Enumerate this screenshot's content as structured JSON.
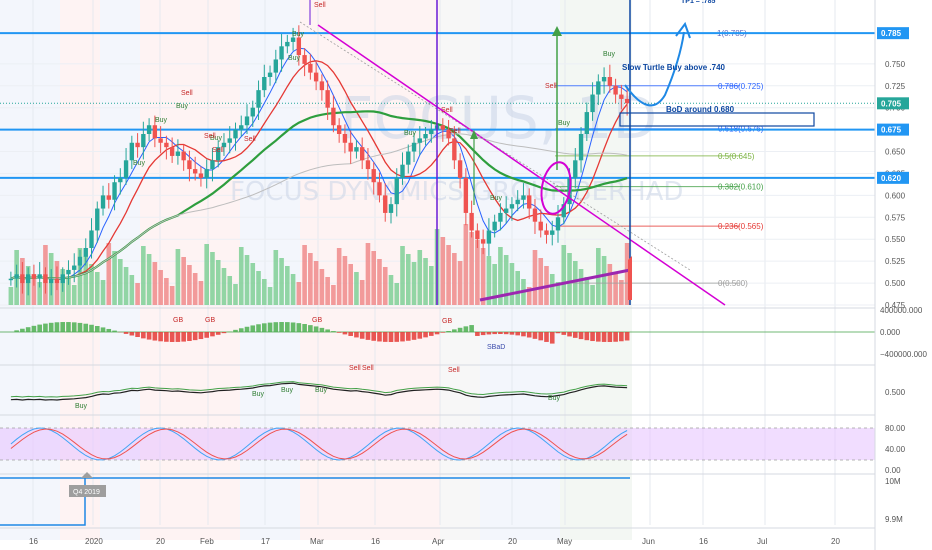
{
  "chart_data": {
    "type": "candlestick",
    "timeframe": "1D",
    "watermark": {
      "ticker": "FOCUS",
      "interval": "1D",
      "company": "FOCUS DYNAMICS GROUP BERHAD"
    },
    "colors": {
      "up": "#26a69a",
      "down": "#ef5350",
      "price_line": "#2196f3",
      "fib": "#2962ff",
      "ma_green": "#2e9e3e",
      "ma_red": "#e53935",
      "trendline": "#d400d4",
      "rsi_band": "#e8c6ff",
      "purple": "#9c27b0",
      "annotation": "#0d47a1"
    },
    "price_axis": {
      "min": 0.475,
      "max": 0.8,
      "ticks": [
        "0.475",
        "0.500",
        "0.525",
        "0.550",
        "0.575",
        "0.600",
        "0.625",
        "0.650",
        "0.675",
        "0.700",
        "0.725",
        "0.750"
      ]
    },
    "highlight_labels": [
      "0.785",
      "0.705",
      "0.675",
      "0.620"
    ],
    "horizontal_levels": [
      0.785,
      0.675,
      0.62
    ],
    "fib_levels": [
      {
        "label": "1(0.785)",
        "value": 0.785,
        "color": "#5c6bc0"
      },
      {
        "label": "0.786(0.725)",
        "value": 0.725,
        "color": "#2962ff"
      },
      {
        "label": "0.618(0.676)",
        "value": 0.676,
        "color": "#2962ff"
      },
      {
        "label": "0.5(0.645)",
        "value": 0.645,
        "color": "#7cb342"
      },
      {
        "label": "0.382(0.610)",
        "value": 0.61,
        "color": "#43a047"
      },
      {
        "label": "0.236(0.565)",
        "value": 0.565,
        "color": "#e53935"
      },
      {
        "label": "0(0.500)",
        "value": 0.5,
        "color": "#9e9e9e"
      }
    ],
    "annotations": {
      "tp": "TP1 = .785",
      "slow_turtle": "Slow Turtle Buy above .740",
      "bod": "BoD around 0.680",
      "q4": "Q4 2019"
    },
    "x_axis_labels": [
      "16",
      "2020",
      "20",
      "Feb",
      "17",
      "Mar",
      "16",
      "Apr",
      "20",
      "May",
      "Jun",
      "16",
      "Jul",
      "20"
    ],
    "series_closes": [
      0.505,
      0.51,
      0.5,
      0.51,
      0.505,
      0.51,
      0.5,
      0.505,
      0.5,
      0.51,
      0.515,
      0.52,
      0.53,
      0.54,
      0.56,
      0.585,
      0.6,
      0.595,
      0.615,
      0.62,
      0.64,
      0.66,
      0.655,
      0.67,
      0.68,
      0.665,
      0.66,
      0.655,
      0.645,
      0.65,
      0.64,
      0.63,
      0.625,
      0.62,
      0.63,
      0.64,
      0.655,
      0.66,
      0.665,
      0.675,
      0.68,
      0.69,
      0.7,
      0.72,
      0.735,
      0.74,
      0.755,
      0.77,
      0.775,
      0.78,
      0.76,
      0.75,
      0.74,
      0.73,
      0.72,
      0.7,
      0.68,
      0.67,
      0.66,
      0.65,
      0.655,
      0.64,
      0.63,
      0.615,
      0.6,
      0.58,
      0.59,
      0.62,
      0.635,
      0.65,
      0.66,
      0.665,
      0.67,
      0.675,
      0.68,
      0.675,
      0.665,
      0.64,
      0.62,
      0.58,
      0.56,
      0.55,
      0.545,
      0.56,
      0.57,
      0.58,
      0.585,
      0.59,
      0.595,
      0.6,
      0.585,
      0.57,
      0.56,
      0.555,
      0.56,
      0.575,
      0.59,
      0.62,
      0.64,
      0.67,
      0.695,
      0.715,
      0.73,
      0.735,
      0.725,
      0.715,
      0.71,
      0.705
    ],
    "macd": {
      "ticks": [
        "400000.000",
        "0.000",
        "−400000.000"
      ]
    },
    "indicator3": {
      "ticks": [
        "0.500"
      ]
    },
    "rsi": {
      "ticks": [
        "80.00",
        "40.00",
        "0.00"
      ]
    },
    "earnings": {
      "ticks": [
        "10M",
        "9.9M"
      ]
    },
    "signals": {
      "buy": [
        "Buy",
        "Buy",
        "Buy",
        "Buy",
        "Buy",
        "Buy",
        "Buy",
        "Buy",
        "Buy",
        "Buy"
      ],
      "sell": [
        "Sell",
        "Sell",
        "Sell",
        "Sell",
        "Sell",
        "Sell",
        "Sell",
        "Sell"
      ],
      "macd_gb": [
        "GB",
        "GB",
        "GB",
        "GB"
      ],
      "macd_sbad": "SBaD",
      "ind3_buy": [
        "Buy",
        "Buy",
        "Buy",
        "Buy",
        "Buy"
      ],
      "ind3_sell": [
        "Sell",
        "Sell",
        "Sell"
      ]
    }
  }
}
